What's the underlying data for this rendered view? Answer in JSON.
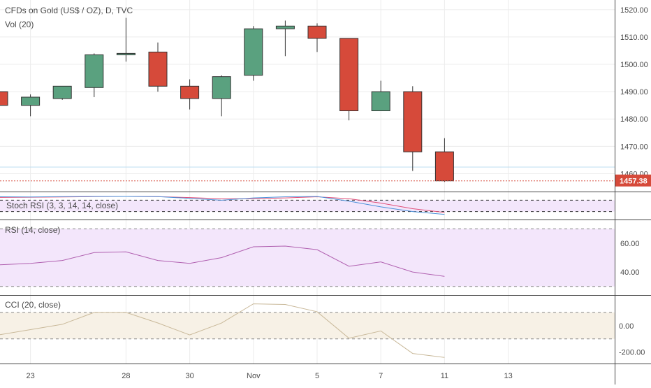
{
  "chart_data": {
    "type": "candlestick",
    "title": "CFDs on Gold (US$ / OZ), D, TVC",
    "volume_label": "Vol (20)",
    "last_price_label": "1457.38",
    "colors": {
      "up": "#5aa17f",
      "down": "#d64a3a",
      "last_price": "#d64a3a",
      "stoch_k": "#4a90d9",
      "stoch_d": "#e0507a",
      "rsi": "#b060b0",
      "cci": "#c9b99a",
      "grid": "#ececec",
      "panel_stoch_bg": "#f3e6fb",
      "panel_rsi_bg": "#f3e6fb",
      "panel_cci_bg": "#f7f1e6"
    },
    "x_ticks": [
      {
        "label": "23",
        "i": 1
      },
      {
        "label": "28",
        "i": 4
      },
      {
        "label": "30",
        "i": 6
      },
      {
        "label": "Nov",
        "i": 8
      },
      {
        "label": "5",
        "i": 10
      },
      {
        "label": "7",
        "i": 12
      },
      {
        "label": "11",
        "i": 14
      },
      {
        "label": "13",
        "i": 16
      }
    ],
    "price_axis": {
      "ticks": [
        "1520.00",
        "1510.00",
        "1500.00",
        "1490.00",
        "1480.00",
        "1470.00",
        "1460.00"
      ],
      "ylim": [
        1455,
        1522
      ]
    },
    "candles": [
      {
        "o": 1490,
        "h": 1491,
        "l": 1484,
        "c": 1485
      },
      {
        "o": 1485,
        "h": 1489,
        "l": 1481,
        "c": 1488
      },
      {
        "o": 1487.5,
        "h": 1492,
        "l": 1487,
        "c": 1492
      },
      {
        "o": 1491.5,
        "h": 1504,
        "l": 1488,
        "c": 1503.5
      },
      {
        "o": 1503.5,
        "h": 1517,
        "l": 1501,
        "c": 1504
      },
      {
        "o": 1504.5,
        "h": 1508,
        "l": 1490,
        "c": 1492
      },
      {
        "o": 1492,
        "h": 1494.5,
        "l": 1483.5,
        "c": 1487.5
      },
      {
        "o": 1487.5,
        "h": 1496,
        "l": 1481,
        "c": 1495.5
      },
      {
        "o": 1496,
        "h": 1514,
        "l": 1494,
        "c": 1513
      },
      {
        "o": 1513,
        "h": 1516,
        "l": 1503,
        "c": 1514
      },
      {
        "o": 1514,
        "h": 1515,
        "l": 1504.5,
        "c": 1509.5
      },
      {
        "o": 1509.5,
        "h": 1509.5,
        "l": 1479.5,
        "c": 1483
      },
      {
        "o": 1483,
        "h": 1494,
        "l": 1483,
        "c": 1490
      },
      {
        "o": 1490,
        "h": 1492,
        "l": 1461,
        "c": 1468
      },
      {
        "o": 1468,
        "h": 1473,
        "l": 1457,
        "c": 1457.38
      }
    ],
    "stoch_rsi": {
      "label": "Stoch RSI (3, 3, 14, 14, close)",
      "k": [
        98,
        97,
        99,
        100,
        100,
        99,
        90,
        80,
        92,
        98,
        100,
        75,
        45,
        20,
        5
      ],
      "d": [
        95,
        96,
        97,
        99,
        100,
        99,
        94,
        88,
        88,
        92,
        98,
        88,
        65,
        35,
        15
      ],
      "bands": [
        80,
        20
      ],
      "ylim": [
        0,
        100
      ]
    },
    "rsi": {
      "label": "RSI (14, close)",
      "ticks": [
        "60.00",
        "40.00"
      ],
      "values": [
        45,
        46,
        48,
        53.5,
        54,
        48,
        46,
        50,
        57.5,
        58,
        55.5,
        44,
        47,
        40,
        37
      ],
      "bands": [
        70,
        30
      ],
      "ylim": [
        26,
        74
      ]
    },
    "cci": {
      "label": "CCI (20, close)",
      "ticks": [
        "0.00",
        "-200.00"
      ],
      "values": [
        -70,
        -30,
        10,
        100,
        100,
        20,
        -70,
        20,
        165,
        160,
        105,
        -95,
        -40,
        -210,
        -240
      ],
      "bands": [
        100,
        -100
      ],
      "ylim": [
        -265,
        205
      ]
    }
  }
}
